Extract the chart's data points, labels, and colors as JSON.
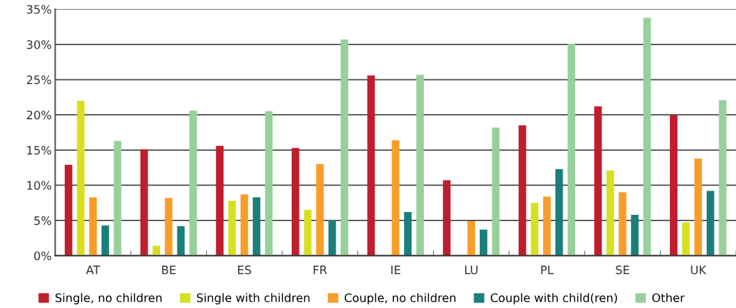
{
  "chart_data": {
    "type": "bar",
    "categories": [
      "AT",
      "BE",
      "ES",
      "FR",
      "IE",
      "LU",
      "PL",
      "SE",
      "UK"
    ],
    "series": [
      {
        "name": "Single, no children",
        "color": "#be1e2d",
        "values": [
          12.9,
          15.1,
          15.6,
          15.3,
          25.6,
          10.7,
          18.5,
          21.2,
          20.0
        ]
      },
      {
        "name": "Single with children",
        "color": "#d7df23",
        "values": [
          22.0,
          1.4,
          7.8,
          6.5,
          0,
          0,
          7.5,
          12.1,
          4.7
        ]
      },
      {
        "name": "Couple, no children",
        "color": "#f99d2a",
        "values": [
          8.3,
          8.2,
          8.7,
          13.0,
          16.4,
          4.9,
          8.4,
          9.0,
          13.8
        ]
      },
      {
        "name": "Couple with child(ren)",
        "color": "#1a7f7a",
        "values": [
          4.3,
          4.2,
          8.3,
          5.0,
          6.2,
          3.7,
          12.3,
          5.8,
          9.2
        ]
      },
      {
        "name": "Other",
        "color": "#98d09b",
        "values": [
          16.3,
          20.6,
          20.5,
          30.7,
          25.7,
          18.2,
          30.1,
          33.8,
          22.1
        ]
      }
    ],
    "ylim": [
      0,
      35
    ],
    "yticks": [
      {
        "value": 0,
        "label": "0%"
      },
      {
        "value": 5,
        "label": "5%"
      },
      {
        "value": 10,
        "label": "10%"
      },
      {
        "value": 15,
        "label": "15%"
      },
      {
        "value": 20,
        "label": "20%"
      },
      {
        "value": 25,
        "label": "25%"
      },
      {
        "value": 30,
        "label": "30%"
      },
      {
        "value": 35,
        "label": "35%"
      }
    ],
    "grid": "y",
    "legend": "bottom"
  }
}
